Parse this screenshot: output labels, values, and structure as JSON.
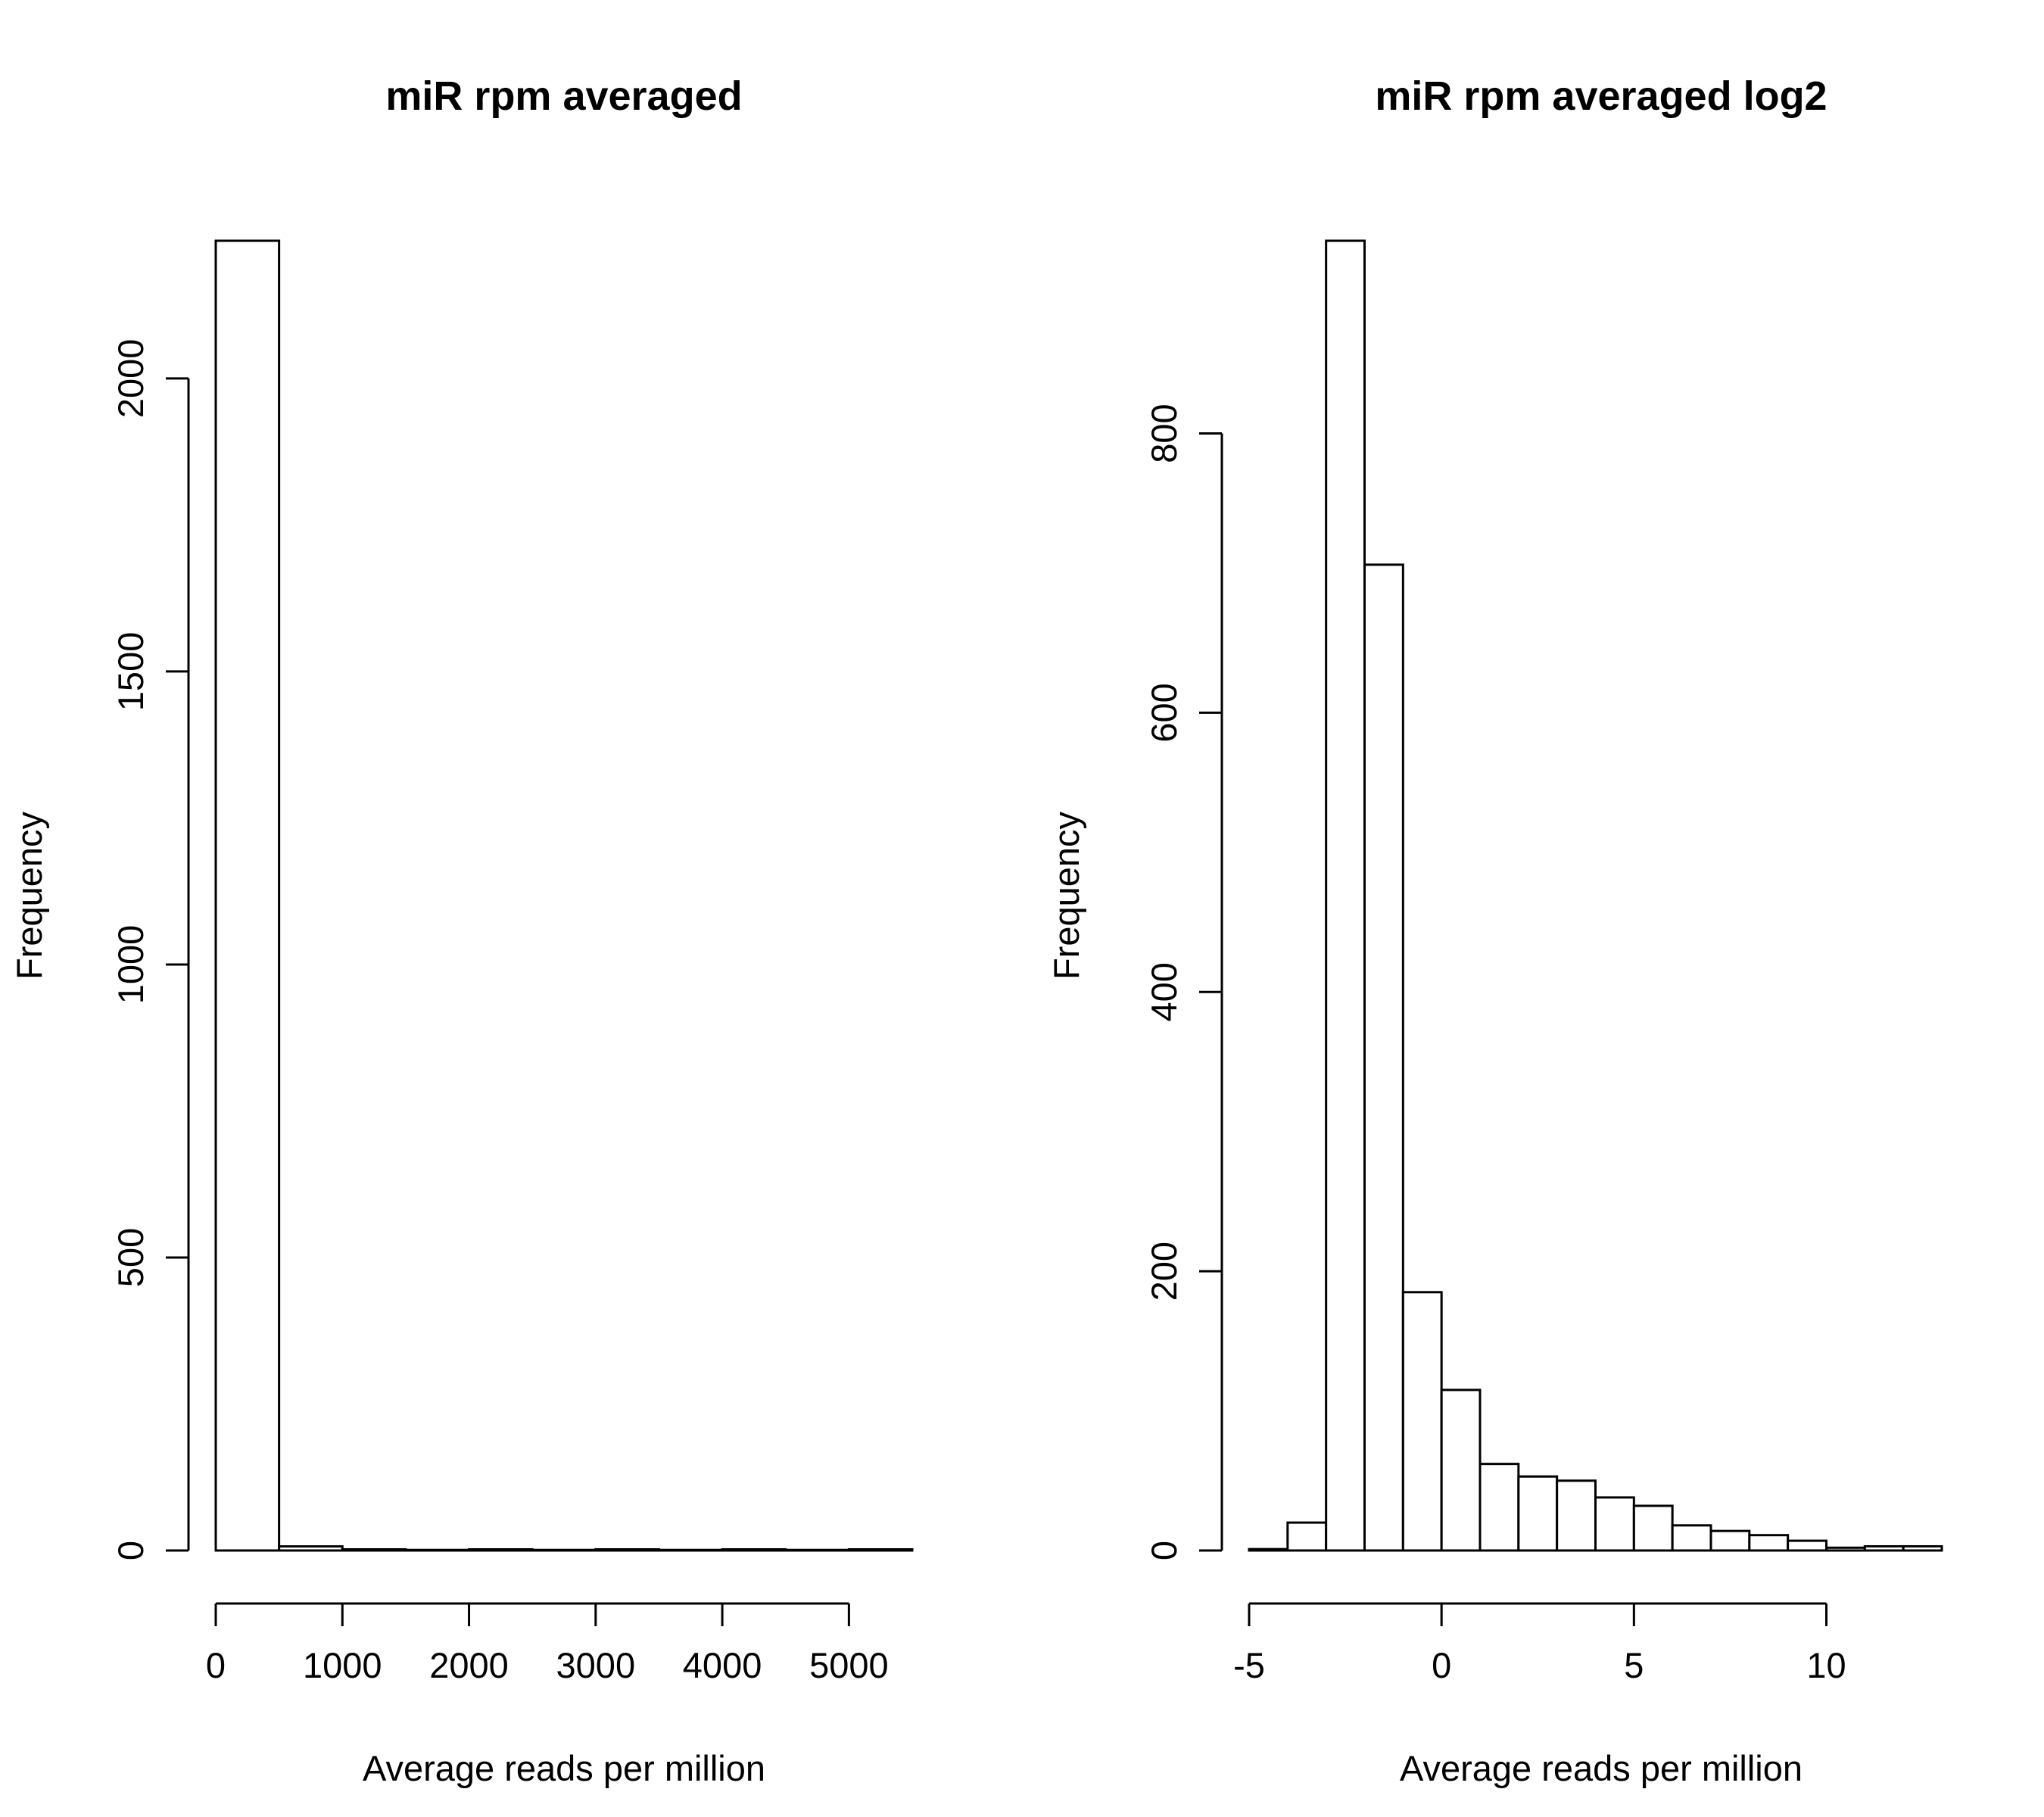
{
  "chart_data": [
    {
      "type": "bar",
      "title": "miR rpm averaged",
      "xlabel": "Average reads per million",
      "ylabel": "Frequency",
      "bin_edges": [
        0,
        500,
        1000,
        1500,
        2000,
        2500,
        3000,
        3500,
        4000,
        4500,
        5000,
        5500
      ],
      "values": [
        2235,
        7,
        2,
        1,
        2,
        1,
        2,
        1,
        2,
        1,
        2
      ],
      "xlim": [
        0,
        5500
      ],
      "ylim": [
        0,
        2235
      ],
      "x_ticks": [
        0,
        1000,
        2000,
        3000,
        4000,
        5000
      ],
      "y_ticks": [
        0,
        500,
        1000,
        1500,
        2000
      ],
      "grid": false,
      "legend": "none"
    },
    {
      "type": "bar",
      "title": "miR rpm averaged log2",
      "xlabel": "Average reads per million",
      "ylabel": "Frequency",
      "bin_edges": [
        -5,
        -4,
        -3,
        -2,
        -1,
        0,
        1,
        2,
        3,
        4,
        5,
        6,
        7,
        8,
        9,
        10,
        11,
        12,
        13
      ],
      "values": [
        1,
        20,
        938,
        706,
        185,
        115,
        62,
        53,
        50,
        38,
        32,
        18,
        14,
        11,
        7,
        2,
        3,
        3
      ],
      "xlim": [
        -5,
        13
      ],
      "ylim": [
        0,
        938
      ],
      "x_ticks": [
        -5,
        0,
        5,
        10
      ],
      "y_ticks": [
        0,
        200,
        400,
        600,
        800
      ],
      "grid": false,
      "legend": "none"
    }
  ]
}
